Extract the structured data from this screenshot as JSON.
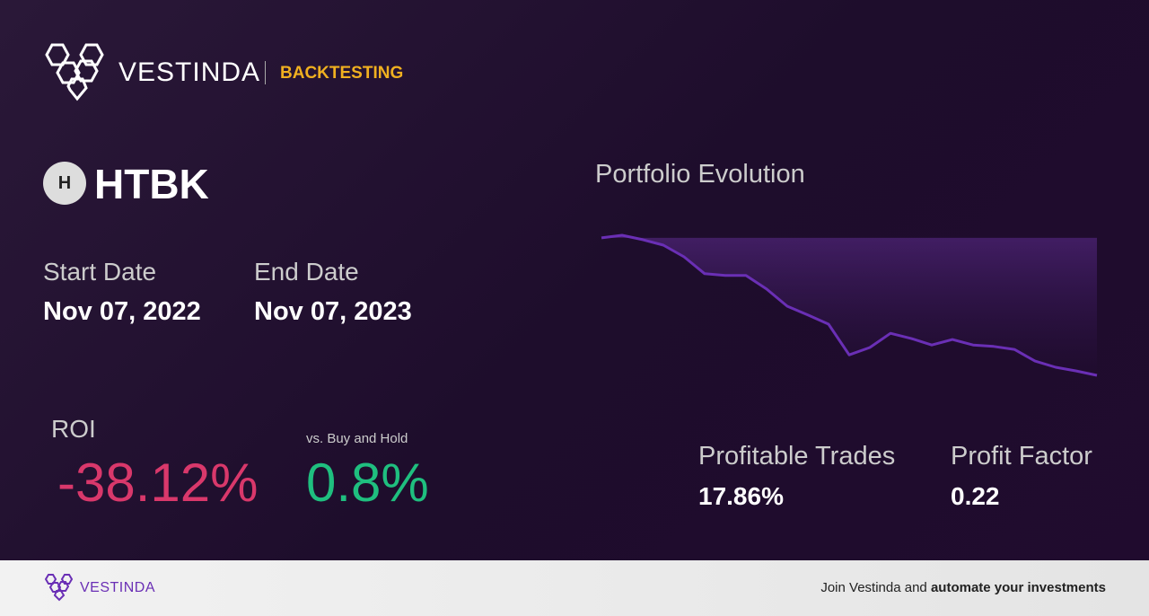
{
  "header": {
    "brand": "VESTINDA",
    "section": "BACKTESTING"
  },
  "ticker": {
    "icon": "H",
    "symbol": "HTBK"
  },
  "dates": {
    "start": {
      "label": "Start Date",
      "value": "Nov 07, 2022"
    },
    "end": {
      "label": "End Date",
      "value": "Nov 07, 2023"
    }
  },
  "roi": {
    "label": "ROI",
    "value": "-38.12%"
  },
  "vs_buy_hold": {
    "label": "vs. Buy and Hold",
    "value": "0.8%"
  },
  "chart_data": {
    "type": "line",
    "title": "Portfolio Evolution",
    "color": "#6a2fb5",
    "values": [
      99.5,
      100.2,
      99.0,
      97.5,
      94.3,
      89.7,
      89.2,
      89.2,
      85.5,
      80.8,
      78.4,
      75.9,
      67.5,
      69.5,
      73.4,
      72.0,
      70.2,
      71.7,
      70.2,
      69.8,
      69.0,
      65.8,
      64.1,
      63.1,
      61.9
    ]
  },
  "stats": {
    "profitable_trades": {
      "label": "Profitable Trades",
      "value": "17.86%"
    },
    "profit_factor": {
      "label": "Profit Factor",
      "value": "0.22"
    }
  },
  "footer": {
    "brand": "VESTINDA",
    "text": "Join Vestinda and ",
    "text_bold": "automate your investments"
  }
}
